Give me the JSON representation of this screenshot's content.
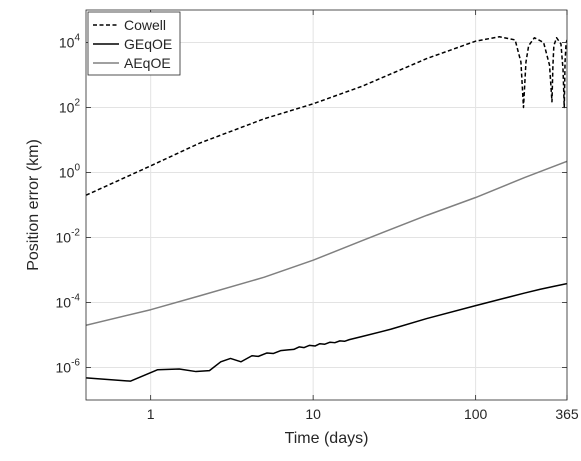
{
  "chart_data": {
    "type": "line",
    "title": "",
    "xlabel": "Time (days)",
    "ylabel": "Position error (km)",
    "x_scale": "log",
    "y_scale": "log",
    "xlim": [
      0.4,
      365
    ],
    "ylim": [
      1e-07,
      100000.0
    ],
    "x_ticks": [
      1,
      10,
      100,
      365
    ],
    "x_tick_labels": [
      "1",
      "10",
      "100",
      "365"
    ],
    "y_ticks": [
      1e-06,
      0.0001,
      0.01,
      1,
      100,
      10000
    ],
    "y_tick_labels": [
      {
        "base": "10",
        "exp": "-6"
      },
      {
        "base": "10",
        "exp": "-4"
      },
      {
        "base": "10",
        "exp": "-2"
      },
      {
        "base": "10",
        "exp": "0"
      },
      {
        "base": "10",
        "exp": "2"
      },
      {
        "base": "10",
        "exp": "4"
      }
    ],
    "grid": true,
    "legend_position": "top-left",
    "series": [
      {
        "name": "Cowell",
        "color": "#000000",
        "dash": "dashed",
        "x": [
          0.4,
          1,
          2,
          5,
          10,
          20,
          50,
          100,
          140,
          175,
          190,
          197,
          204,
          212,
          230,
          262,
          285,
          295,
          299,
          303,
          315,
          335,
          345,
          351,
          355,
          360,
          365
        ],
        "y": [
          0.2,
          1.6,
          8,
          45,
          130,
          450,
          3200,
          11000,
          15000,
          12000,
          2500,
          100,
          2500,
          8000,
          14000,
          10000,
          2000,
          150,
          2000,
          8000,
          14000,
          9000,
          1500,
          100,
          2500,
          9000,
          12000
        ]
      },
      {
        "name": "GEqOE",
        "color": "#000000",
        "dash": "solid",
        "x": [
          0.4,
          0.75,
          1.1,
          1.5,
          1.9,
          2.3,
          2.7,
          3.1,
          3.6,
          4.2,
          4.6,
          5.2,
          5.7,
          6.3,
          7,
          7.6,
          8.2,
          8.8,
          9.5,
          10.3,
          11,
          11.8,
          12.7,
          13.6,
          14.6,
          15.6,
          16.7,
          20,
          30,
          50,
          100,
          150,
          200,
          250,
          300,
          365
        ],
        "y": [
          4.8e-07,
          3.8e-07,
          8.5e-07,
          9e-07,
          7.5e-07,
          8e-07,
          1.5e-06,
          1.9e-06,
          1.5e-06,
          2.3e-06,
          2.2e-06,
          2.8e-06,
          2.7e-06,
          3.3e-06,
          3.5e-06,
          3.6e-06,
          4.3e-06,
          4.1e-06,
          4.8e-06,
          4.6e-06,
          5.4e-06,
          5.2e-06,
          6e-06,
          5.8e-06,
          6.6e-06,
          6.4e-06,
          7.2e-06,
          9e-06,
          1.5e-05,
          3.2e-05,
          8e-05,
          0.000135,
          0.000195,
          0.000255,
          0.00031,
          0.00038
        ]
      },
      {
        "name": "AEqOE",
        "color": "#808080",
        "dash": "solid",
        "x": [
          0.4,
          1,
          2,
          5,
          10,
          20,
          50,
          100,
          200,
          365
        ],
        "y": [
          2e-05,
          6e-05,
          0.00016,
          0.0006,
          0.002,
          0.008,
          0.048,
          0.17,
          0.7,
          2.2
        ]
      }
    ]
  }
}
